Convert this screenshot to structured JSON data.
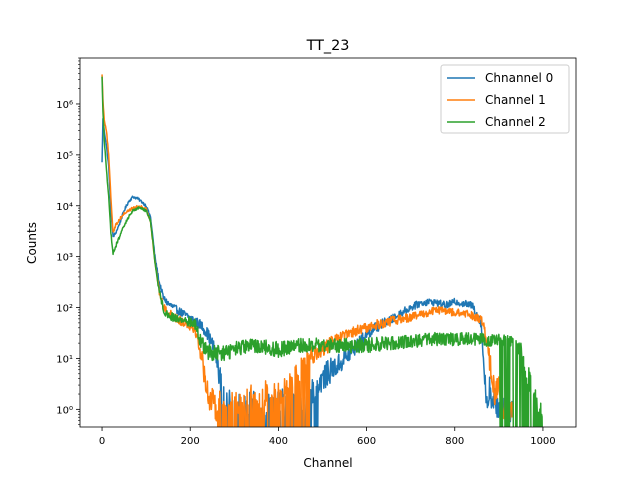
{
  "chart_data": {
    "type": "line",
    "title": "TT_23",
    "xlabel": "Channel",
    "ylabel": "Counts",
    "xlim": [
      -50,
      1075
    ],
    "ylim": [
      0.45,
      8000000
    ],
    "yscale": "log",
    "x_ticks": [
      0,
      200,
      400,
      600,
      800,
      1000
    ],
    "x_tick_labels": [
      "0",
      "200",
      "400",
      "600",
      "800",
      "1000"
    ],
    "y_ticks": [
      1,
      10,
      100,
      1000,
      10000,
      100000,
      1000000
    ],
    "y_tick_labels": [
      "10⁰",
      "10¹",
      "10²",
      "10³",
      "10⁴",
      "10⁵",
      "10⁶"
    ],
    "grid": false,
    "legend_position": "top-right",
    "series": [
      {
        "name": "Chnannel 0",
        "color": "#1f77b4",
        "x": [
          0,
          2,
          5,
          10,
          15,
          20,
          25,
          30,
          40,
          50,
          60,
          70,
          80,
          90,
          100,
          110,
          120,
          130,
          140,
          150,
          170,
          190,
          210,
          225,
          240,
          255,
          262,
          268,
          272,
          280,
          300,
          320,
          340,
          360,
          380,
          400,
          420,
          440,
          460,
          480,
          500,
          520,
          540,
          560,
          580,
          600,
          620,
          640,
          660,
          680,
          700,
          720,
          740,
          760,
          780,
          800,
          820,
          840,
          860,
          865,
          870,
          875,
          880,
          885,
          890,
          900,
          910,
          920,
          930
        ],
        "y": [
          70000,
          500000,
          300000,
          150000,
          60000,
          8000,
          2500,
          2800,
          4500,
          8000,
          12000,
          15000,
          14000,
          12000,
          10000,
          6000,
          1000,
          300,
          150,
          120,
          90,
          70,
          55,
          45,
          30,
          15,
          8,
          4,
          2,
          1.2,
          1.5,
          1.0,
          1.3,
          1.0,
          1.2,
          1.3,
          1.5,
          2.0,
          1.0,
          2.5,
          4,
          6,
          8,
          12,
          18,
          30,
          40,
          50,
          60,
          80,
          100,
          120,
          130,
          125,
          110,
          130,
          120,
          110,
          50,
          10,
          2,
          1.5,
          3,
          1,
          1.5,
          1,
          1.2,
          1,
          1
        ],
        "clip": {
          "x0": 272,
          "x1": 490
        }
      },
      {
        "name": "Channel 1",
        "color": "#ff7f0e",
        "x": [
          0,
          2,
          5,
          10,
          15,
          20,
          25,
          30,
          40,
          50,
          60,
          70,
          80,
          90,
          100,
          110,
          120,
          130,
          140,
          150,
          170,
          190,
          210,
          225,
          240,
          255,
          262,
          268,
          272,
          280,
          300,
          320,
          340,
          360,
          380,
          400,
          420,
          440,
          460,
          480,
          500,
          520,
          540,
          560,
          580,
          600,
          620,
          640,
          660,
          680,
          700,
          720,
          740,
          760,
          780,
          800,
          820,
          840,
          860,
          870,
          880,
          890,
          900,
          910,
          920,
          930
        ],
        "y": [
          4000000,
          1200000,
          500000,
          300000,
          100000,
          15000,
          3000,
          4000,
          5500,
          7000,
          8000,
          9000,
          9500,
          9500,
          8500,
          5000,
          800,
          200,
          100,
          80,
          60,
          50,
          40,
          12,
          2,
          1.2,
          1,
          1.3,
          1.5,
          1.2,
          1.6,
          1.3,
          2,
          1.5,
          2.5,
          2,
          3,
          5,
          8,
          12,
          15,
          20,
          25,
          30,
          35,
          40,
          45,
          50,
          55,
          60,
          65,
          70,
          80,
          90,
          85,
          80,
          75,
          70,
          60,
          30,
          8,
          2,
          3,
          1,
          1,
          1
        ],
        "clip": {
          "x0": 262,
          "x1": 470
        }
      },
      {
        "name": "Channel 2",
        "color": "#2ca02c",
        "x": [
          0,
          2,
          5,
          10,
          15,
          20,
          25,
          30,
          40,
          50,
          60,
          70,
          80,
          90,
          100,
          110,
          120,
          130,
          140,
          150,
          170,
          190,
          210,
          225,
          240,
          260,
          280,
          300,
          350,
          400,
          450,
          500,
          550,
          600,
          650,
          700,
          750,
          800,
          850,
          900,
          930,
          950,
          960,
          970,
          980,
          990,
          1000
        ],
        "y": [
          3500000,
          700000,
          200000,
          50000,
          15000,
          3000,
          1200,
          1500,
          2500,
          4000,
          6000,
          8000,
          9000,
          9000,
          8000,
          5000,
          800,
          200,
          90,
          70,
          60,
          55,
          50,
          20,
          14,
          12,
          13,
          15,
          18,
          15,
          18,
          18,
          18,
          18,
          20,
          22,
          24,
          24,
          24,
          22,
          20,
          15,
          8,
          3,
          1.5,
          1,
          1
        ],
        "clip": {
          "x0": 900,
          "x1": 1000
        }
      }
    ]
  }
}
